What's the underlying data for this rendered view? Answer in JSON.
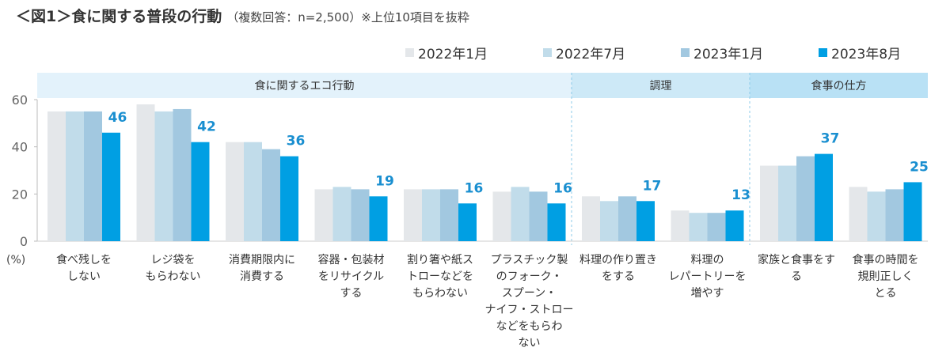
{
  "header": {
    "title": "＜図1＞食に関する普段の行動",
    "subtitle": "（複数回答：n=2,500）※上位10項目を抜粋"
  },
  "chart_data": {
    "type": "bar",
    "title": "＜図1＞食に関する普段の行動",
    "ylabel": "(%)",
    "ylim": [
      0,
      60
    ],
    "yticks": [
      "0",
      "20",
      "40",
      "60"
    ],
    "grid": false,
    "legend_position": "top-right",
    "groups": [
      {
        "label": "食に関するエコ行動",
        "categories": [
          0,
          1,
          2,
          3,
          4,
          5
        ],
        "color": "#e3f2fb"
      },
      {
        "label": "調理",
        "categories": [
          6,
          7
        ],
        "color": "#cde9f7"
      },
      {
        "label": "食事の仕方",
        "categories": [
          8,
          9
        ],
        "color": "#b9e1f5"
      }
    ],
    "categories": [
      [
        "食べ残しを",
        "しない"
      ],
      [
        "レジ袋を",
        "もらわない"
      ],
      [
        "消費期限内に",
        "消費する"
      ],
      [
        "容器・包装材",
        "をリサイクル",
        "する"
      ],
      [
        "割り箸や紙ス",
        "トローなどを",
        "もらわない"
      ],
      [
        "プラスチック製",
        "のフォーク・",
        "スプーン・",
        "ナイフ・ストロー",
        "などをもらわ",
        "ない"
      ],
      [
        "料理の作り置き",
        "をする"
      ],
      [
        "料理の",
        "レパートリーを",
        "増やす"
      ],
      [
        "家族と食事をす",
        "る"
      ],
      [
        "食事の時間を",
        "規則正しく",
        "とる"
      ]
    ],
    "series": [
      {
        "name": "2022年1月",
        "color": "#e4e7ea",
        "values": [
          55,
          58,
          42,
          22,
          22,
          21,
          19,
          13,
          32,
          23
        ]
      },
      {
        "name": "2022年7月",
        "color": "#c1dcea",
        "values": [
          55,
          55,
          42,
          23,
          22,
          23,
          17,
          12,
          32,
          21
        ]
      },
      {
        "name": "2023年1月",
        "color": "#a2c8e0",
        "values": [
          55,
          56,
          39,
          22,
          22,
          21,
          19,
          12,
          36,
          22
        ]
      },
      {
        "name": "2023年8月",
        "color": "#009fe3",
        "values": [
          46,
          42,
          36,
          19,
          16,
          16,
          17,
          13,
          37,
          25
        ],
        "data_labels": [
          "46",
          "42",
          "36",
          "19",
          "16",
          "16",
          "17",
          "13",
          "37",
          "25"
        ],
        "label_color": "#1a8fd0"
      }
    ]
  }
}
